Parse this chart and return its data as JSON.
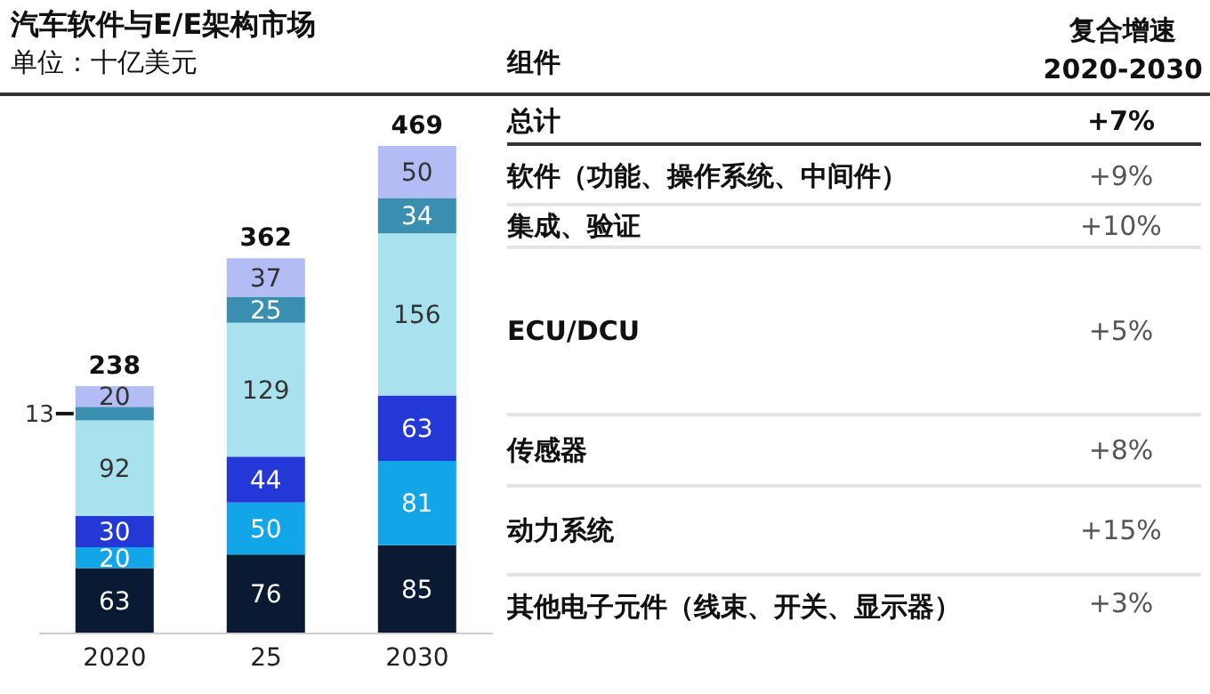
{
  "chart_data": {
    "type": "bar",
    "title": "汽车软件与E/E架构市场",
    "subtitle": "单位：十亿美元",
    "categories": [
      "2020",
      "25",
      "2030"
    ],
    "stacked": true,
    "data_labels": true,
    "totals": [
      "238",
      "362",
      "469"
    ],
    "series": [
      {
        "name": "其他电子元件（线束、开关、显示器）",
        "color": "#0b1a33",
        "values": [
          63,
          76,
          85
        ]
      },
      {
        "name": "动力系统",
        "color": "#12a5e8",
        "values": [
          20,
          50,
          81
        ]
      },
      {
        "name": "传感器",
        "color": "#2438d8",
        "values": [
          30,
          44,
          63
        ]
      },
      {
        "name": "ECU/DCU",
        "color": "#a8e2ee",
        "values": [
          92,
          129,
          156
        ]
      },
      {
        "name": "集成、验证",
        "color": "#3a8fb0",
        "values": [
          13,
          25,
          34
        ]
      },
      {
        "name": "软件（功能、操作系统、中间件）",
        "color": "#b3bcf5",
        "values": [
          20,
          37,
          50
        ]
      }
    ],
    "annotations": [
      "组件",
      "复合增速\n2020-2030",
      "总计",
      "+7%",
      "+3%",
      "+15%",
      "+8%",
      "+5%",
      "+10%",
      "+9%"
    ]
  }
}
